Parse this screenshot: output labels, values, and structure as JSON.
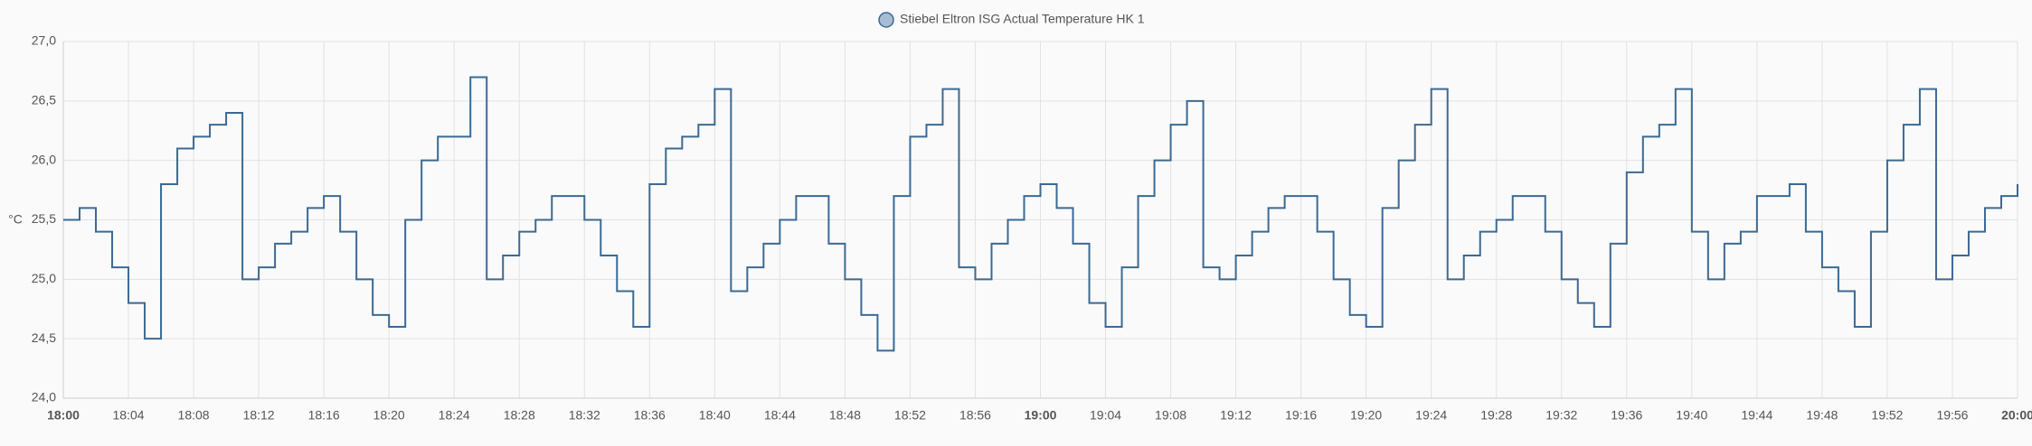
{
  "chart_data": {
    "type": "step",
    "y_label": "°C",
    "x": [
      "18:00",
      "18:01",
      "18:02",
      "18:03",
      "18:04",
      "18:05",
      "18:06",
      "18:07",
      "18:08",
      "18:09",
      "18:10",
      "18:11",
      "18:12",
      "18:13",
      "18:14",
      "18:15",
      "18:16",
      "18:17",
      "18:18",
      "18:19",
      "18:20",
      "18:21",
      "18:22",
      "18:23",
      "18:24",
      "18:25",
      "18:26",
      "18:27",
      "18:28",
      "18:29",
      "18:30",
      "18:31",
      "18:32",
      "18:33",
      "18:34",
      "18:35",
      "18:36",
      "18:37",
      "18:38",
      "18:39",
      "18:40",
      "18:41",
      "18:42",
      "18:43",
      "18:44",
      "18:45",
      "18:46",
      "18:47",
      "18:48",
      "18:49",
      "18:50",
      "18:51",
      "18:52",
      "18:53",
      "18:54",
      "18:55",
      "18:56",
      "18:57",
      "18:58",
      "18:59",
      "19:00",
      "19:01",
      "19:02",
      "19:03",
      "19:04",
      "19:05",
      "19:06",
      "19:07",
      "19:08",
      "19:09",
      "19:10",
      "19:11",
      "19:12",
      "19:13",
      "19:14",
      "19:15",
      "19:16",
      "19:17",
      "19:18",
      "19:19",
      "19:20",
      "19:21",
      "19:22",
      "19:23",
      "19:24",
      "19:25",
      "19:26",
      "19:27",
      "19:28",
      "19:29",
      "19:30",
      "19:31",
      "19:32",
      "19:33",
      "19:34",
      "19:35",
      "19:36",
      "19:37",
      "19:38",
      "19:39",
      "19:40",
      "19:41",
      "19:42",
      "19:43",
      "19:44",
      "19:45",
      "19:46",
      "19:47",
      "19:48",
      "19:49",
      "19:50",
      "19:51",
      "19:52",
      "19:53",
      "19:54",
      "19:55",
      "19:56",
      "19:57",
      "19:58",
      "19:59",
      "20:00"
    ],
    "series": [
      {
        "name": "Stiebel Eltron ISG Actual Temperature HK 1",
        "color": "#3b6a94",
        "values": [
          25.5,
          25.6,
          25.4,
          25.1,
          24.8,
          24.5,
          25.8,
          26.1,
          26.2,
          26.3,
          26.4,
          25.0,
          25.1,
          25.3,
          25.4,
          25.6,
          25.7,
          25.4,
          25.0,
          24.7,
          24.6,
          25.5,
          26.0,
          26.2,
          26.2,
          26.7,
          25.0,
          25.2,
          25.4,
          25.5,
          25.7,
          25.7,
          25.5,
          25.2,
          24.9,
          24.6,
          25.8,
          26.1,
          26.2,
          26.3,
          26.6,
          24.9,
          25.1,
          25.3,
          25.5,
          25.7,
          25.7,
          25.3,
          25.0,
          24.7,
          24.4,
          25.7,
          26.2,
          26.3,
          26.6,
          25.1,
          25.0,
          25.3,
          25.5,
          25.7,
          25.8,
          25.6,
          25.3,
          24.8,
          24.6,
          25.1,
          25.7,
          26.0,
          26.3,
          26.5,
          25.1,
          25.0,
          25.2,
          25.4,
          25.6,
          25.7,
          25.7,
          25.4,
          25.0,
          24.7,
          24.6,
          25.6,
          26.0,
          26.3,
          26.6,
          25.0,
          25.2,
          25.4,
          25.5,
          25.7,
          25.7,
          25.4,
          25.0,
          24.8,
          24.6,
          25.3,
          25.9,
          26.2,
          26.3,
          26.6,
          25.4,
          25.0,
          25.3,
          25.4,
          25.7,
          25.7,
          25.8,
          25.4,
          25.1,
          24.9,
          24.6,
          25.4,
          26.0,
          26.3,
          26.6,
          25.0,
          25.2,
          25.4,
          25.6,
          25.7,
          25.8
        ]
      }
    ],
    "xlim": [
      "18:00",
      "20:00"
    ],
    "xticks": [
      "18:00",
      "18:04",
      "18:08",
      "18:12",
      "18:16",
      "18:20",
      "18:24",
      "18:28",
      "18:32",
      "18:36",
      "18:40",
      "18:44",
      "18:48",
      "18:52",
      "18:56",
      "19:00",
      "19:04",
      "19:08",
      "19:12",
      "19:16",
      "19:20",
      "19:24",
      "19:28",
      "19:32",
      "19:36",
      "19:40",
      "19:44",
      "19:48",
      "19:52",
      "19:56",
      "20:00"
    ],
    "ylim": [
      24.0,
      27.0
    ],
    "yticks": [
      {
        "value": 24.0,
        "label": "24,0"
      },
      {
        "value": 24.5,
        "label": "24,5"
      },
      {
        "value": 25.0,
        "label": "25,0"
      },
      {
        "value": 25.5,
        "label": "25,5"
      },
      {
        "value": 26.0,
        "label": "26,0"
      },
      {
        "value": 26.5,
        "label": "26,5"
      },
      {
        "value": 27.0,
        "label": "27,0"
      }
    ],
    "grid": true
  }
}
